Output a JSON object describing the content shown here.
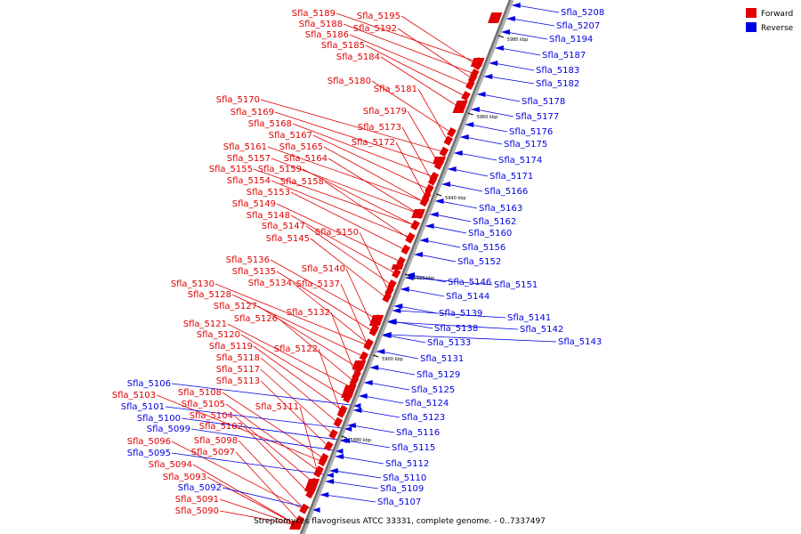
{
  "caption": "Streptomyces flavogriseus ATCC 33331, complete genome. - 0..7337497",
  "colors": {
    "forward": "#e00000",
    "reverse": "#0000e0",
    "axis": "#808080"
  },
  "legend": [
    {
      "label": "Forward",
      "color": "#e00000"
    },
    {
      "label": "Reverse",
      "color": "#0000e0"
    }
  ],
  "tick_labels": [
    "5980 kbp",
    "5960 kbp",
    "5940 kbp",
    "5920 kbp",
    "5900 kbp",
    "5880 kbp"
  ],
  "forward_labels": [
    "Sfla_5189",
    "Sfla_5195",
    "Sfla_5188",
    "Sfla_5192",
    "Sfla_5186",
    "Sfla_5185",
    "Sfla_5184",
    "Sfla_5180",
    "Sfla_5181",
    "Sfla_5170",
    "Sfla_5179",
    "Sfla_5169",
    "Sfla_5168",
    "Sfla_5173",
    "Sfla_5167",
    "Sfla_5172",
    "Sfla_5161",
    "Sfla_5165",
    "Sfla_5157",
    "Sfla_5164",
    "Sfla_5155",
    "Sfla_5159",
    "Sfla_5154",
    "Sfla_5158",
    "Sfla_5153",
    "Sfla_5149",
    "Sfla_5148",
    "Sfla_5147",
    "Sfla_5150",
    "Sfla_5145",
    "Sfla_5136",
    "Sfla_5135",
    "Sfla_5140",
    "Sfla_5134",
    "Sfla_5137",
    "Sfla_5130",
    "Sfla_5128",
    "Sfla_5127",
    "Sfla_5126",
    "Sfla_5132",
    "Sfla_5121",
    "Sfla_5120",
    "Sfla_5119",
    "Sfla_5122",
    "Sfla_5118",
    "Sfla_5117",
    "Sfla_5113",
    "Sfla_5108",
    "Sfla_5111",
    "Sfla_5103",
    "Sfla_5105",
    "Sfla_5104",
    "Sfla_5102",
    "Sfla_5096",
    "Sfla_5098",
    "Sfla_5097",
    "Sfla_5094",
    "Sfla_5093",
    "Sfla_5091",
    "Sfla_5090"
  ],
  "reverse_left_labels": [
    "Sfla_5106",
    "Sfla_5101",
    "Sfla_5100",
    "Sfla_5099",
    "Sfla_5095",
    "Sfla_5092"
  ],
  "reverse_right_labels": [
    "Sfla_5208",
    "Sfla_5207",
    "Sfla_5194",
    "Sfla_5187",
    "Sfla_5183",
    "Sfla_5182",
    "Sfla_5178",
    "Sfla_5177",
    "Sfla_5176",
    "Sfla_5175",
    "Sfla_5174",
    "Sfla_5171",
    "Sfla_5166",
    "Sfla_5163",
    "Sfla_5162",
    "Sfla_5160",
    "Sfla_5156",
    "Sfla_5152",
    "Sfla_5146",
    "Sfla_5151",
    "Sfla_5144",
    "Sfla_5139",
    "Sfla_5141",
    "Sfla_5138",
    "Sfla_5142",
    "Sfla_5143",
    "Sfla_5133",
    "Sfla_5131",
    "Sfla_5129",
    "Sfla_5125",
    "Sfla_5124",
    "Sfla_5123",
    "Sfla_5116",
    "Sfla_5115",
    "Sfla_5112",
    "Sfla_5110",
    "Sfla_5109",
    "Sfla_5107"
  ]
}
